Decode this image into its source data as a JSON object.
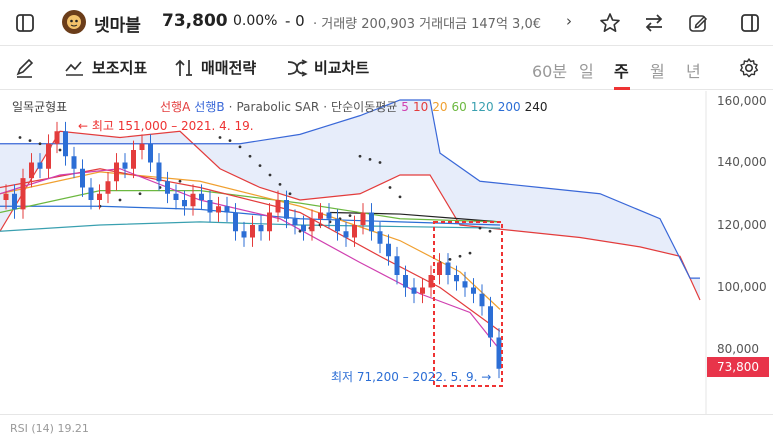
{
  "header": {
    "stock_name": "넷마블",
    "price": "73,800",
    "change_pct": "0.00%",
    "change_sign": "- 0",
    "meta": "· 거래량 200,903 거래대금 147억 3,0€"
  },
  "toolbar": {
    "indicator_label": "보조지표",
    "strategy_label": "매매전략",
    "compare_label": "비교차트",
    "periods": [
      "60분",
      "일",
      "주",
      "월",
      "년"
    ],
    "active_period": "주"
  },
  "chart": {
    "indicator_title": "일목균형표",
    "legend": {
      "senkou_a": "선행A",
      "senkou_b": "선행B",
      "psar": "Parabolic SAR",
      "sma": "단순이동평균",
      "ma_periods": [
        "5",
        "10",
        "20",
        "60",
        "120",
        "200",
        "240"
      ]
    },
    "high_annotation": "← 최고 151,000 – 2021. 4. 19.",
    "low_annotation": "최저 71,200 – 2022. 5. 9. →",
    "current_price_tag": "73,800",
    "y_ticks": [
      "160,000",
      "140,000",
      "120,000",
      "100,000",
      "80,000"
    ],
    "rsi_label": "RSI (14) 19.21"
  },
  "colors": {
    "up": "#e33c3c",
    "down": "#2c6ed5",
    "cloud_a": "#e33c3c",
    "cloud_b": "#3a68d8",
    "ma5": "#d040b0",
    "ma10": "#e33c3c",
    "ma20": "#f0a030",
    "ma60": "#6cb840",
    "ma120": "#3aa0b0",
    "ma200": "#2c6ed5",
    "ma240": "#222222"
  },
  "icons": [
    "sidebar-icon",
    "star-icon",
    "swap-icon",
    "edit-icon",
    "panel-icon",
    "pen-icon",
    "settings-icon"
  ]
}
